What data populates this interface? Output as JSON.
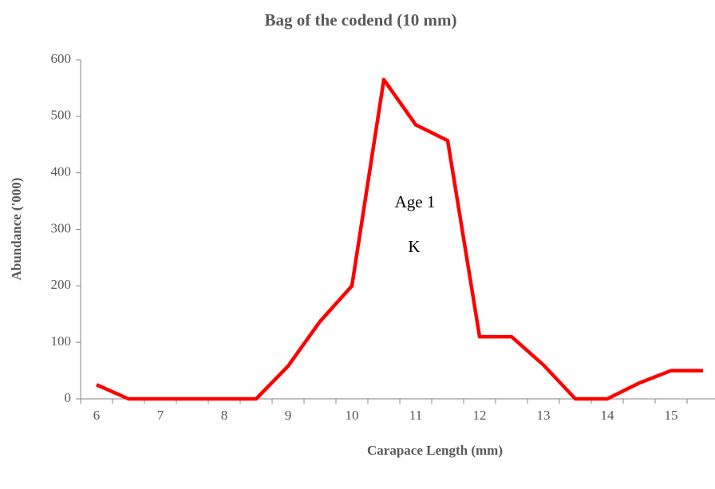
{
  "chart_data": {
    "type": "line",
    "title": "Bag of the codend (10 mm)",
    "x_label": "Carapace  Length (mm)",
    "y_label": "Abundance   ('000)",
    "categories": [
      "6",
      null,
      "7",
      null,
      "8",
      null,
      "9",
      null,
      "10",
      null,
      "11",
      null,
      "12",
      null,
      "13",
      null,
      "14",
      null,
      "15",
      null
    ],
    "series": [
      {
        "name": "Abundance",
        "color": "#ff0000",
        "values": [
          25,
          0,
          0,
          0,
          0,
          0,
          58,
          137,
          200,
          565,
          485,
          457,
          110,
          110,
          60,
          0,
          0,
          28,
          50,
          50
        ]
      }
    ],
    "ylim": [
      0,
      600
    ],
    "yticks": [
      0,
      100,
      200,
      300,
      400,
      500,
      600
    ],
    "annotations": [
      "Age 1",
      "K"
    ]
  }
}
